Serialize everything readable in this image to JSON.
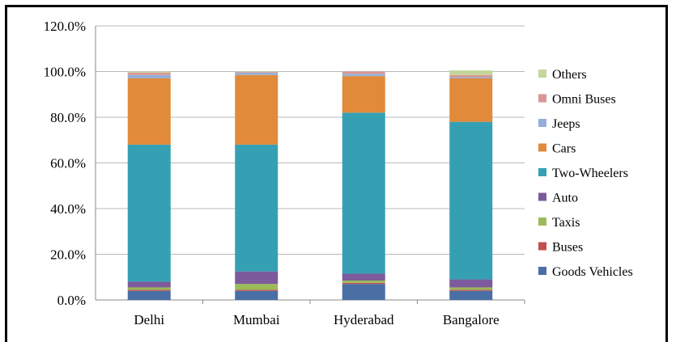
{
  "chart_data": {
    "type": "bar",
    "stacked": true,
    "title": "",
    "xlabel": "",
    "ylabel": "",
    "ylim": [
      0,
      120
    ],
    "y_ticks": [
      "0.0%",
      "20.0%",
      "40.0%",
      "60.0%",
      "80.0%",
      "100.0%",
      "120.0%"
    ],
    "grid": true,
    "legend_position": "right",
    "categories": [
      "Delhi",
      "Mumbai",
      "Hyderabad",
      "Bangalore"
    ],
    "series": [
      {
        "name": "Goods Vehicles",
        "color": "#4a6fa5",
        "values": [
          4.0,
          4.0,
          7.0,
          4.0
        ]
      },
      {
        "name": "Buses",
        "color": "#c0504d",
        "values": [
          0.5,
          0.5,
          0.5,
          0.5
        ]
      },
      {
        "name": "Taxis",
        "color": "#9bbb59",
        "values": [
          1.0,
          2.5,
          1.0,
          1.0
        ]
      },
      {
        "name": "Auto",
        "color": "#7d5a9b",
        "values": [
          2.5,
          5.5,
          3.0,
          3.5
        ]
      },
      {
        "name": "Two-Wheelers",
        "color": "#35a0b4",
        "values": [
          60.0,
          55.5,
          70.5,
          69.0
        ]
      },
      {
        "name": "Cars",
        "color": "#e08a3a",
        "values": [
          29.0,
          30.5,
          16.0,
          19.0
        ]
      },
      {
        "name": "Jeeps",
        "color": "#94afd8",
        "values": [
          1.5,
          1.0,
          1.0,
          0.5
        ]
      },
      {
        "name": "Omni Buses",
        "color": "#da9694",
        "values": [
          1.0,
          0.3,
          1.0,
          1.0
        ]
      },
      {
        "name": "Others",
        "color": "#c3d69b",
        "values": [
          0.5,
          0.2,
          0.0,
          2.0
        ]
      }
    ]
  }
}
